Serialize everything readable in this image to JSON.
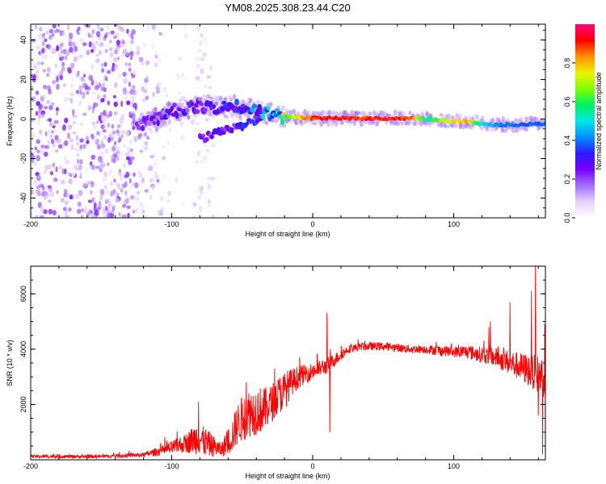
{
  "figure": {
    "title": "YM08.2025.308.23.44.C20"
  },
  "chart_data": [
    {
      "type": "heatmap",
      "title": "YM08.2025.308.23.44.C20",
      "xlabel": "Height of straight line (km)",
      "ylabel": "Frequency (Hz)",
      "xlim": [
        -200,
        165
      ],
      "ylim": [
        -50,
        48
      ],
      "xticks": [
        "-200",
        "-100",
        "0",
        "100"
      ],
      "xtick_values": [
        -200,
        -100,
        0,
        100
      ],
      "yticks": [
        "-40",
        "-20",
        "0",
        "20",
        "40"
      ],
      "ytick_values": [
        -40,
        -20,
        0,
        20,
        40
      ],
      "colorbar": {
        "label": "Normalized spectral amplitude",
        "range": [
          0,
          1
        ],
        "ticks": [
          "0.0",
          "0.2",
          "0.4",
          "0.6",
          "0.8"
        ],
        "tick_values": [
          0.0,
          0.2,
          0.4,
          0.6,
          0.8
        ],
        "colormap": [
          "#ffffff",
          "#e6d0ff",
          "#a070ff",
          "#7a00ff",
          "#2a1aff",
          "#0090ff",
          "#00e8e8",
          "#00f060",
          "#80ff00",
          "#f0f000",
          "#ff9000",
          "#ff0000",
          "#ff0080"
        ]
      },
      "ridge": [
        {
          "x": -125,
          "f": -5.0,
          "a": 0.18
        },
        {
          "x": -100,
          "f": 4.0,
          "a": 0.25
        },
        {
          "x": -80,
          "f": 7.0,
          "a": 0.22
        },
        {
          "x": -65,
          "f": 6.0,
          "a": 0.25
        },
        {
          "x": -50,
          "f": 6.0,
          "a": 0.3
        },
        {
          "x": -40,
          "f": 4.0,
          "a": 0.35
        },
        {
          "x": -25,
          "f": 1.5,
          "a": 0.5
        },
        {
          "x": -10,
          "f": 0.8,
          "a": 0.8
        },
        {
          "x": 0,
          "f": 0.5,
          "a": 0.9
        },
        {
          "x": 20,
          "f": 0.3,
          "a": 0.93
        },
        {
          "x": 50,
          "f": 0.3,
          "a": 0.93
        },
        {
          "x": 70,
          "f": 0.3,
          "a": 0.88
        },
        {
          "x": 80,
          "f": 0.0,
          "a": 0.55
        },
        {
          "x": 95,
          "f": -1.0,
          "a": 0.75
        },
        {
          "x": 110,
          "f": -1.0,
          "a": 0.8
        },
        {
          "x": 120,
          "f": -2.5,
          "a": 0.5
        },
        {
          "x": 135,
          "f": -3.0,
          "a": 0.4
        },
        {
          "x": 165,
          "f": -2.5,
          "a": 0.38
        }
      ],
      "lower_branch": [
        {
          "x": -80,
          "f": -10.0,
          "a": 0.22
        },
        {
          "x": -65,
          "f": -6.0,
          "a": 0.25
        },
        {
          "x": -50,
          "f": -3.0,
          "a": 0.28
        },
        {
          "x": -35,
          "f": 0.0,
          "a": 0.35
        }
      ],
      "noise_regions": [
        {
          "x_from": -200,
          "x_to": -125,
          "f_from": -50,
          "f_to": 48,
          "density": "dense",
          "a": 0.18
        },
        {
          "x_from": -125,
          "x_to": -105,
          "f_from": -50,
          "f_to": 48,
          "density": "medium",
          "a": 0.12
        },
        {
          "x_from": -105,
          "x_to": -90,
          "f_from": -50,
          "f_to": 48,
          "density": "sparse",
          "a": 0.06
        },
        {
          "x_from": -85,
          "x_to": -70,
          "f_from": -50,
          "f_to": 48,
          "density": "medium",
          "a": 0.08
        }
      ]
    },
    {
      "type": "line",
      "xlabel": "Height of straight line (km)",
      "ylabel": "SNR (10 * v/v)",
      "xlim": [
        -200,
        165
      ],
      "ylim": [
        0,
        7000
      ],
      "xticks": [
        "-200",
        "-100",
        "0",
        "100"
      ],
      "xtick_values": [
        -200,
        -100,
        0,
        100
      ],
      "yticks": [
        "2000",
        "4000",
        "6000"
      ],
      "ytick_values": [
        2000,
        4000,
        6000
      ],
      "color": "#ff0000",
      "series": [
        {
          "name": "SNR",
          "x": [
            -200,
            -150,
            -120,
            -105,
            -90,
            -82,
            -75,
            -65,
            -58,
            -52,
            -45,
            -40,
            -35,
            -30,
            -25,
            -20,
            -15,
            -10,
            -5,
            0,
            5,
            10,
            15,
            20,
            25,
            30,
            35,
            40,
            50,
            60,
            70,
            80,
            90,
            100,
            110,
            120,
            130,
            140,
            150,
            155,
            160,
            165
          ],
          "y": [
            120,
            120,
            180,
            350,
            600,
            800,
            600,
            350,
            800,
            1400,
            1700,
            1800,
            1800,
            2000,
            2300,
            2500,
            2800,
            3000,
            3100,
            3200,
            3300,
            3400,
            3600,
            3800,
            4000,
            4050,
            4100,
            4100,
            4100,
            4050,
            4000,
            4000,
            3950,
            3900,
            3900,
            3800,
            3700,
            3500,
            3300,
            3200,
            3100,
            3000
          ],
          "spread": [
            60,
            60,
            80,
            200,
            350,
            600,
            500,
            250,
            600,
            800,
            900,
            900,
            800,
            700,
            700,
            700,
            500,
            400,
            350,
            300,
            300,
            300,
            250,
            200,
            150,
            150,
            150,
            150,
            150,
            150,
            150,
            150,
            200,
            200,
            250,
            300,
            350,
            450,
            550,
            600,
            700,
            800
          ]
        }
      ],
      "annotations": [
        {
          "x": -81,
          "y": 2100,
          "note": "spike"
        },
        {
          "x": -47,
          "y": 2800,
          "note": "spike"
        },
        {
          "x": -27,
          "y": 3300,
          "note": "spike"
        },
        {
          "x": 10,
          "y": 5300,
          "note": "spike"
        },
        {
          "x": 12,
          "y": 1000,
          "note": "dip"
        },
        {
          "x": 125,
          "y": 4800,
          "note": "spike"
        },
        {
          "x": 126,
          "y": 5000,
          "note": "spike"
        },
        {
          "x": 140,
          "y": 5700,
          "note": "spike"
        },
        {
          "x": 155,
          "y": 6100,
          "note": "spike"
        },
        {
          "x": 158,
          "y": 7000,
          "note": "spike"
        },
        {
          "x": 163,
          "y": 6200,
          "note": "spike"
        },
        {
          "x": 160,
          "y": 1600,
          "note": "dip"
        },
        {
          "x": 163,
          "y": 200,
          "note": "dip"
        }
      ]
    }
  ]
}
